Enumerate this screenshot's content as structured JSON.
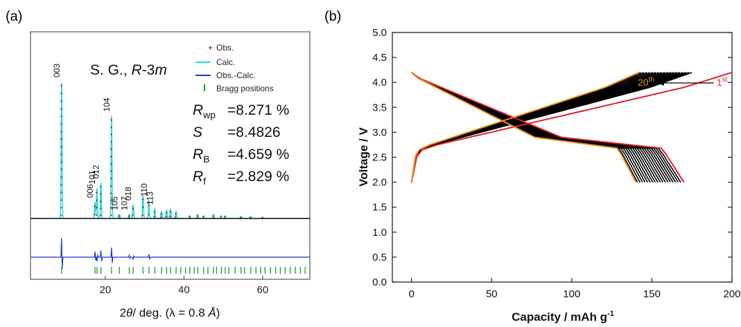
{
  "chart_data": [
    {
      "panel": "(a)",
      "type": "line",
      "xlabel": "2θ/ deg. (λ = 0.8 Å)",
      "xlabel_parts": {
        "theta": "2",
        "theta_sym": "θ",
        "rest": "/ deg. (λ = 0.8 ",
        "unit": "Å",
        "close": ")"
      },
      "xlim": [
        1,
        72
      ],
      "x_ticks": [
        20,
        40,
        60
      ],
      "y_ticks_shown": false,
      "space_group": {
        "prefix": "S. G., ",
        "symbol": "R",
        "suffix": "-3",
        "italic_m": "m"
      },
      "legend": {
        "position": "top-right",
        "entries": [
          {
            "label": "Obs.",
            "marker": "+",
            "color": "#222222"
          },
          {
            "label": "Calc.",
            "marker": "line",
            "color": "#3fd6d6"
          },
          {
            "label": "Obs.-Calc.",
            "marker": "line",
            "color": "#2233cc"
          },
          {
            "label": "Bragg positions",
            "marker": "tick",
            "color": "#229922"
          }
        ]
      },
      "refinement": [
        {
          "symbol": "R",
          "sub": "wp",
          "value": "=8.271 %"
        },
        {
          "symbol": "S",
          "sub": "",
          "value": "=8.4826"
        },
        {
          "symbol": "R",
          "sub": "B",
          "value": "=4.659 %"
        },
        {
          "symbol": "R",
          "sub": "f",
          "value": "=2.829 %"
        }
      ],
      "peaks": [
        {
          "label": "003",
          "x": 8.9,
          "height": 1.0
        },
        {
          "label": "006",
          "x": 17.4,
          "height": 0.12
        },
        {
          "label": "101",
          "x": 17.9,
          "height": 0.22
        },
        {
          "label": "012",
          "x": 18.9,
          "height": 0.26
        },
        {
          "label": "104",
          "x": 21.6,
          "height": 0.75
        },
        {
          "label": "105",
          "x": 23.6,
          "height": 0.03
        },
        {
          "label": "107",
          "x": 26.1,
          "height": 0.03
        },
        {
          "label": "018",
          "x": 27.1,
          "height": 0.1
        },
        {
          "label": "110",
          "x": 31.1,
          "height": 0.13
        },
        {
          "label": "113",
          "x": 32.6,
          "height": 0.07
        }
      ],
      "minor_peaks": [
        {
          "x": 29.6,
          "height": 0.17
        },
        {
          "x": 34.3,
          "height": 0.05
        },
        {
          "x": 35.6,
          "height": 0.06
        },
        {
          "x": 36.6,
          "height": 0.07
        },
        {
          "x": 38.0,
          "height": 0.05
        },
        {
          "x": 41.5,
          "height": 0.02
        },
        {
          "x": 43.5,
          "height": 0.03
        },
        {
          "x": 45.0,
          "height": 0.02
        },
        {
          "x": 47.5,
          "height": 0.03
        },
        {
          "x": 49.5,
          "height": 0.02
        },
        {
          "x": 50.5,
          "height": 0.02
        },
        {
          "x": 54.5,
          "height": 0.015
        },
        {
          "x": 57.0,
          "height": 0.015
        },
        {
          "x": 60.0,
          "height": 0.01
        }
      ],
      "bragg_positions": [
        8.9,
        17.4,
        17.9,
        18.9,
        21.6,
        23.6,
        26.1,
        27.1,
        29.6,
        31.1,
        32.6,
        34.3,
        35.6,
        36.6,
        38.0,
        39.2,
        40.4,
        41.5,
        42.6,
        43.5,
        45.0,
        46.1,
        47.5,
        48.3,
        49.5,
        50.5,
        51.4,
        53.0,
        54.5,
        55.4,
        57.0,
        58.3,
        59.5,
        60.6,
        62.0,
        63.3,
        64.5,
        65.7,
        67.0,
        68.3,
        69.6,
        70.8
      ]
    },
    {
      "panel": "(b)",
      "type": "line",
      "xlabel": "Capacity / mAh g",
      "xlabel_sup": "-1",
      "ylabel": "Voltage / V",
      "xlim": [
        -12,
        200
      ],
      "ylim": [
        0.0,
        5.0
      ],
      "x_ticks": [
        "0",
        "50",
        "100",
        "150",
        "200"
      ],
      "y_ticks": [
        "0.0",
        "0.5",
        "1.0",
        "1.5",
        "2.0",
        "2.5",
        "3.0",
        "3.5",
        "4.0",
        "4.5",
        "5.0"
      ],
      "annotations": [
        {
          "text": "20",
          "sup": "th",
          "color": "#e8901c"
        },
        {
          "text": "1",
          "sup": "st",
          "color": "#e0202a"
        }
      ],
      "series": [
        {
          "name": "1st",
          "color": "#e0202a",
          "charge_capacity": 200,
          "discharge_capacity": 170
        },
        {
          "name": "20th",
          "color": "#e8901c",
          "charge_capacity": 142,
          "discharge_capacity": 140
        }
      ],
      "intermediate_cycles": {
        "count": 18,
        "color": "#000000",
        "charge_capacity_range": [
          175,
          143
        ],
        "discharge_capacity_range": [
          168,
          141
        ]
      }
    }
  ]
}
